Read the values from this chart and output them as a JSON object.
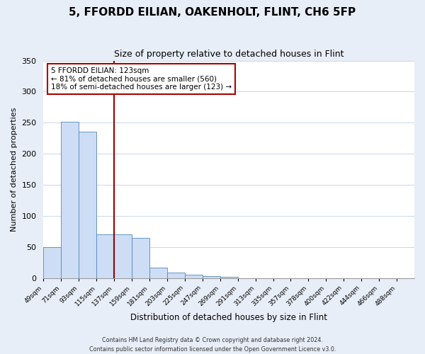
{
  "title": "5, FFORDD EILIAN, OAKENHOLT, FLINT, CH6 5FP",
  "subtitle": "Size of property relative to detached houses in Flint",
  "xlabel": "Distribution of detached houses by size in Flint",
  "ylabel": "Number of detached properties",
  "bar_labels": [
    "49sqm",
    "71sqm",
    "93sqm",
    "115sqm",
    "137sqm",
    "159sqm",
    "181sqm",
    "203sqm",
    "225sqm",
    "247sqm",
    "269sqm",
    "291sqm",
    "313sqm",
    "335sqm",
    "357sqm",
    "378sqm",
    "400sqm",
    "422sqm",
    "444sqm",
    "466sqm",
    "488sqm"
  ],
  "bar_values": [
    50,
    251,
    236,
    70,
    70,
    64,
    17,
    9,
    5,
    3,
    2,
    0,
    0,
    0,
    0,
    0,
    0,
    0,
    0,
    0,
    0
  ],
  "bar_color": "#ccddf5",
  "bar_edge_color": "#5588bb",
  "vline_x_index": 4,
  "vline_color": "#990000",
  "annotation_title": "5 FFORDD EILIAN: 123sqm",
  "annotation_line1": "← 81% of detached houses are smaller (560)",
  "annotation_line2": "18% of semi-detached houses are larger (123) →",
  "annotation_box_color": "#ffffff",
  "annotation_box_edge": "#aa0000",
  "ylim": [
    0,
    350
  ],
  "yticks": [
    0,
    50,
    100,
    150,
    200,
    250,
    300,
    350
  ],
  "footer1": "Contains HM Land Registry data © Crown copyright and database right 2024.",
  "footer2": "Contains public sector information licensed under the Open Government Licence v3.0.",
  "bg_color": "#e8eef8",
  "plot_bg_color": "#ffffff",
  "grid_color": "#c8d8e8"
}
